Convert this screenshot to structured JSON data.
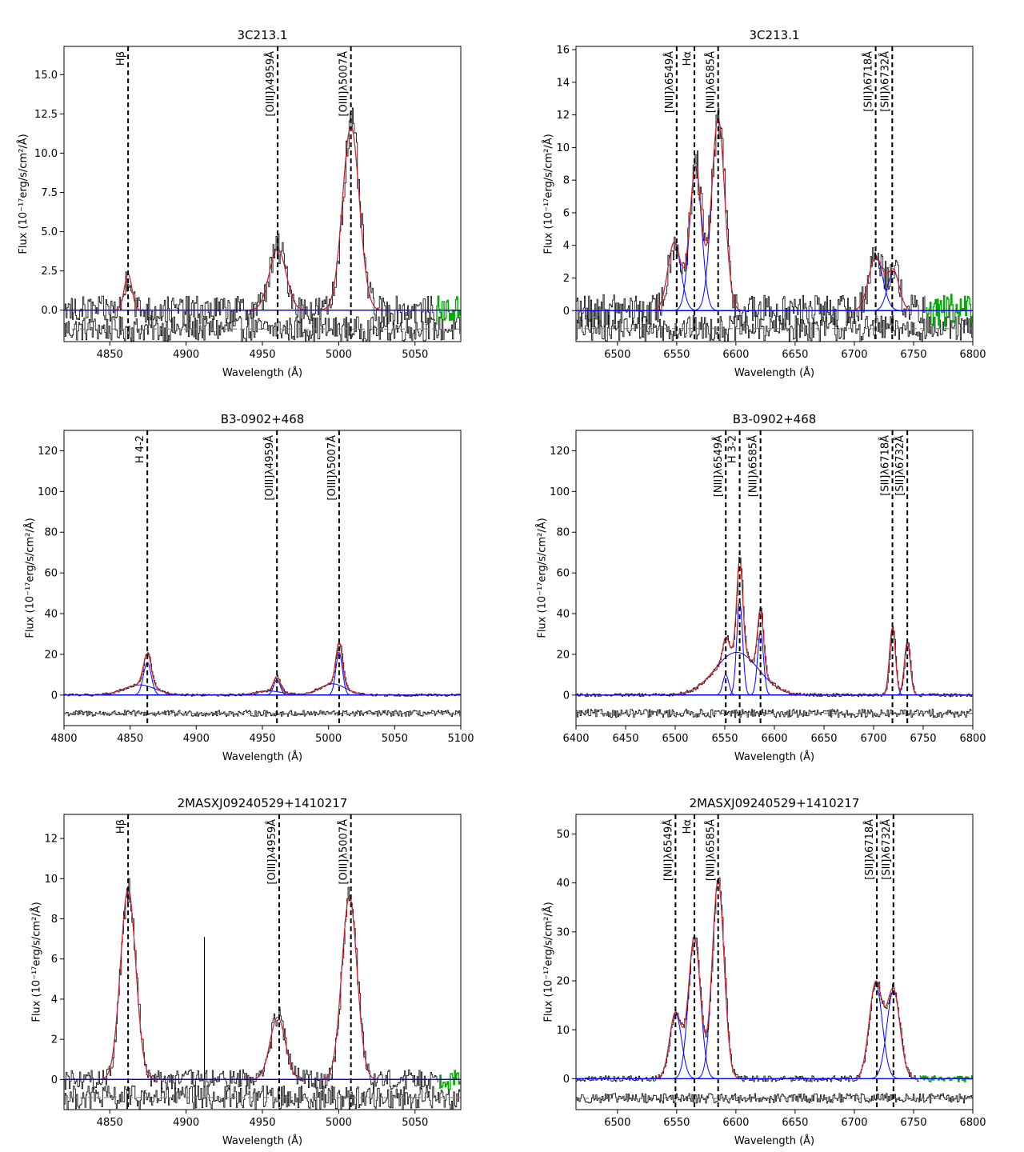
{
  "figure": {
    "description_title": ""
  },
  "colors": {
    "data": "#000000",
    "fit_total": "#d62728",
    "fit_component": "#0000ff",
    "masked": "#00aa00",
    "residual_ref": "#808080",
    "line_marker": "#000000"
  },
  "chart_data": [
    {
      "type": "line",
      "title": "3C213.1",
      "xlabel": "Wavelength (Å)",
      "ylabel": "Flux (10⁻¹⁷erg/s/cm²/Å)",
      "xlim": [
        4820,
        5080
      ],
      "ylim": [
        -2.0,
        16.8
      ],
      "xticks": [
        4850,
        4900,
        4950,
        5000,
        5050
      ],
      "yticks": [
        0.0,
        2.5,
        5.0,
        7.5,
        10.0,
        12.5,
        15.0
      ],
      "ytick_labels": [
        "0.0",
        "2.5",
        "5.0",
        "7.5",
        "10.0",
        "12.5",
        "15.0"
      ],
      "residual_offset": -1.2,
      "residual_amp": 0.8,
      "noise_amp": 0.9,
      "mask_start": 5063,
      "lines": [
        {
          "label": "Hβ",
          "x": 4862
        },
        {
          "label": "[OIII]λ4959Å",
          "x": 4960
        },
        {
          "label": "[OIII]λ5007Å",
          "x": 5008
        }
      ],
      "components": [
        {
          "center": 4862,
          "amp": 2.3,
          "sigma": 2.5
        },
        {
          "center": 4960,
          "amp": 3.9,
          "sigma": 5.5
        },
        {
          "center": 5008,
          "amp": 11.7,
          "sigma": 5.5
        }
      ]
    },
    {
      "type": "line",
      "title": "3C213.1",
      "xlabel": "Wavelength (Å)",
      "ylabel": "Flux (10⁻¹⁷erg/s/cm²/Å)",
      "xlim": [
        6465,
        6800
      ],
      "ylim": [
        -1.9,
        16.2
      ],
      "xticks": [
        6500,
        6550,
        6600,
        6650,
        6700,
        6750,
        6800
      ],
      "yticks": [
        0,
        2,
        4,
        6,
        8,
        10,
        12,
        14,
        16
      ],
      "ytick_labels": [
        "0",
        "2",
        "4",
        "6",
        "8",
        "10",
        "12",
        "14",
        "16"
      ],
      "residual_offset": -1.1,
      "residual_amp": 0.8,
      "noise_amp": 1.0,
      "mask_start": 6760,
      "lines": [
        {
          "label": "[NII]λ6549Å",
          "x": 6550
        },
        {
          "label": "Hα",
          "x": 6565
        },
        {
          "label": "[NII]λ6585Å",
          "x": 6585
        },
        {
          "label": "[SII]λ6718Å",
          "x": 6718
        },
        {
          "label": "[SII]λ6732Å",
          "x": 6732
        }
      ],
      "components": [
        {
          "center": 6548,
          "amp": 4.2,
          "sigma": 5.5
        },
        {
          "center": 6566,
          "amp": 8.8,
          "sigma": 5.0
        },
        {
          "center": 6585,
          "amp": 11.8,
          "sigma": 5.5
        },
        {
          "center": 6718,
          "amp": 3.3,
          "sigma": 6.0
        },
        {
          "center": 6733,
          "amp": 2.4,
          "sigma": 5.0
        }
      ]
    },
    {
      "type": "line",
      "title": "B3-0902+468",
      "xlabel": "Wavelength (Å)",
      "ylabel": "Flux (10⁻¹⁷erg/s/cm²/Å)",
      "xlim": [
        4800,
        5100
      ],
      "ylim": [
        -15,
        130
      ],
      "xticks": [
        4800,
        4850,
        4900,
        4950,
        5000,
        5050,
        5100
      ],
      "yticks": [
        0,
        20,
        40,
        60,
        80,
        100,
        120
      ],
      "ytick_labels": [
        "0",
        "20",
        "40",
        "60",
        "80",
        "100",
        "120"
      ],
      "residual_offset": -9,
      "residual_amp": 1.5,
      "noise_amp": 0.6,
      "mask_start": null,
      "lines": [
        {
          "label": "H 4-2",
          "x": 4863
        },
        {
          "label": "[OIII]λ4959Å",
          "x": 4961
        },
        {
          "label": "[OIII]λ5007Å",
          "x": 5008
        }
      ],
      "components": [
        {
          "center": 4863,
          "amp": 16,
          "sigma": 3.0
        },
        {
          "center": 4857,
          "amp": 5,
          "sigma": 12
        },
        {
          "center": 4961,
          "amp": 7.5,
          "sigma": 2.5
        },
        {
          "center": 4955,
          "amp": 2,
          "sigma": 10
        },
        {
          "center": 5008,
          "amp": 21,
          "sigma": 2.5
        },
        {
          "center": 5003,
          "amp": 5.5,
          "sigma": 10
        }
      ]
    },
    {
      "type": "line",
      "title": "B3-0902+468",
      "xlabel": "Wavelength (Å)",
      "ylabel": "Flux (10⁻¹⁷erg/s/cm²/Å)",
      "xlim": [
        6400,
        6800
      ],
      "ylim": [
        -15,
        130
      ],
      "xticks": [
        6400,
        6450,
        6500,
        6550,
        6600,
        6650,
        6700,
        6750,
        6800
      ],
      "yticks": [
        0,
        20,
        40,
        60,
        80,
        100,
        120
      ],
      "ytick_labels": [
        "0",
        "20",
        "40",
        "60",
        "80",
        "100",
        "120"
      ],
      "residual_offset": -9,
      "residual_amp": 2.0,
      "noise_amp": 0.8,
      "mask_start": null,
      "lines": [
        {
          "label": "[NII]λ6549Å",
          "x": 6551
        },
        {
          "label": "H 3-2",
          "x": 6565
        },
        {
          "label": "[NII]λ6585Å",
          "x": 6586
        },
        {
          "label": "[SII]λ6718Å",
          "x": 6719
        },
        {
          "label": "[SII]λ6732Å",
          "x": 6734
        }
      ],
      "components": [
        {
          "center": 6551,
          "amp": 10,
          "sigma": 3.0
        },
        {
          "center": 6565,
          "amp": 46,
          "sigma": 3.0
        },
        {
          "center": 6562,
          "amp": 21,
          "sigma": 22
        },
        {
          "center": 6586,
          "amp": 31,
          "sigma": 3.0
        },
        {
          "center": 6719,
          "amp": 33,
          "sigma": 3.0
        },
        {
          "center": 6734,
          "amp": 26,
          "sigma": 3.0
        }
      ]
    },
    {
      "type": "line",
      "title": "2MASXJ09240529+1410217",
      "xlabel": "Wavelength (Å)",
      "ylabel": "Flux (10⁻¹⁷erg/s/cm²/Å)",
      "xlim": [
        4820,
        5080
      ],
      "ylim": [
        -1.5,
        13.2
      ],
      "xticks": [
        4850,
        4900,
        4950,
        5000,
        5050
      ],
      "yticks": [
        0,
        2,
        4,
        6,
        8,
        10,
        12
      ],
      "ytick_labels": [
        "0",
        "2",
        "4",
        "6",
        "8",
        "10",
        "12"
      ],
      "residual_offset": -0.9,
      "residual_amp": 0.6,
      "noise_amp": 0.5,
      "mask_start": 5065,
      "spike_x": 4912,
      "spike_y": 7.1,
      "lines": [
        {
          "label": "Hβ",
          "x": 4862
        },
        {
          "label": "[OIII]λ4959Å",
          "x": 4961
        },
        {
          "label": "[OIII]λ5007Å",
          "x": 5008
        }
      ],
      "components": [
        {
          "center": 4862,
          "amp": 9.5,
          "sigma": 5.0
        },
        {
          "center": 4960,
          "amp": 3.1,
          "sigma": 5.0
        },
        {
          "center": 5007,
          "amp": 9.1,
          "sigma": 5.0
        }
      ]
    },
    {
      "type": "line",
      "title": "2MASXJ09240529+1410217",
      "xlabel": "Wavelength (Å)",
      "ylabel": "Flux (10⁻¹⁷erg/s/cm²/Å)",
      "xlim": [
        6465,
        6800
      ],
      "ylim": [
        -6.3,
        54
      ],
      "xticks": [
        6500,
        6550,
        6600,
        6650,
        6700,
        6750,
        6800
      ],
      "yticks": [
        0,
        10,
        20,
        30,
        40,
        50
      ],
      "ytick_labels": [
        "0",
        "10",
        "20",
        "30",
        "40",
        "50"
      ],
      "residual_offset": -4,
      "residual_amp": 1.0,
      "noise_amp": 0.6,
      "mask_start": 6755,
      "lines": [
        {
          "label": "[NII]λ6549Å",
          "x": 6549
        },
        {
          "label": "Hα",
          "x": 6565
        },
        {
          "label": "[NII]λ6585Å",
          "x": 6585
        },
        {
          "label": "[SII]λ6718Å",
          "x": 6719
        },
        {
          "label": "[SII]λ6732Å",
          "x": 6733
        }
      ],
      "components": [
        {
          "center": 6549,
          "amp": 13.5,
          "sigma": 5.0
        },
        {
          "center": 6565,
          "amp": 29,
          "sigma": 5.0
        },
        {
          "center": 6585,
          "amp": 40.5,
          "sigma": 5.0
        },
        {
          "center": 6718,
          "amp": 19.5,
          "sigma": 5.5
        },
        {
          "center": 6733,
          "amp": 18,
          "sigma": 5.5
        }
      ]
    }
  ]
}
